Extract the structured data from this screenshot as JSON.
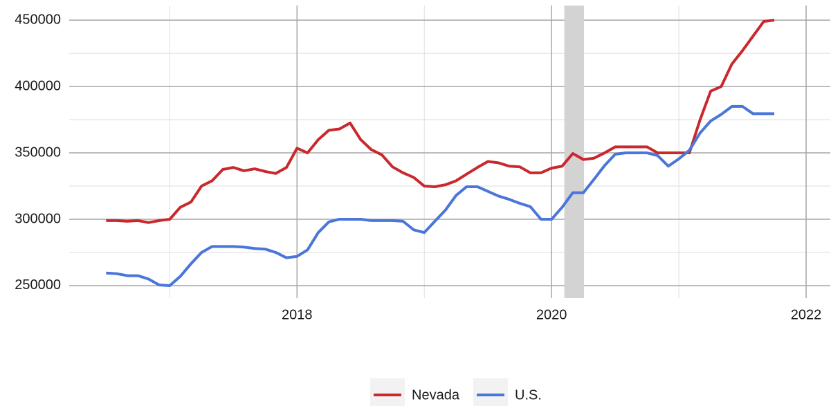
{
  "chart_data": {
    "type": "line",
    "x": [
      2016.5,
      2016.583,
      2016.667,
      2016.75,
      2016.833,
      2016.917,
      2017,
      2017.083,
      2017.167,
      2017.25,
      2017.333,
      2017.417,
      2017.5,
      2017.583,
      2017.667,
      2017.75,
      2017.833,
      2017.917,
      2018,
      2018.083,
      2018.167,
      2018.25,
      2018.333,
      2018.417,
      2018.5,
      2018.583,
      2018.667,
      2018.75,
      2018.833,
      2018.917,
      2019,
      2019.083,
      2019.167,
      2019.25,
      2019.333,
      2019.417,
      2019.5,
      2019.583,
      2019.667,
      2019.75,
      2019.833,
      2019.917,
      2020,
      2020.083,
      2020.167,
      2020.25,
      2020.333,
      2020.417,
      2020.5,
      2020.583,
      2020.667,
      2020.75,
      2020.833,
      2020.917,
      2021,
      2021.083,
      2021.167,
      2021.25,
      2021.333,
      2021.417,
      2021.5,
      2021.583,
      2021.667,
      2021.75
    ],
    "series": [
      {
        "name": "Nevada",
        "color": "#c9282d",
        "values": [
          299000,
          299000,
          298500,
          299000,
          297500,
          299000,
          300000,
          309000,
          313000,
          325000,
          329000,
          337500,
          339000,
          336500,
          338000,
          336000,
          334500,
          339000,
          353500,
          350000,
          360000,
          367000,
          368000,
          372500,
          360000,
          352500,
          348500,
          339500,
          335000,
          331500,
          325000,
          324500,
          326000,
          329000,
          334000,
          339000,
          343500,
          342500,
          340000,
          339500,
          335000,
          335000,
          338500,
          340000,
          349500,
          345000,
          346000,
          350000,
          354500,
          354500,
          354500,
          354500,
          350000,
          350000,
          350000,
          350000,
          375000,
          396500,
          400000,
          417000,
          427000,
          438000,
          449000,
          450000
        ]
      },
      {
        "name": "U.S.",
        "color": "#4a76d9",
        "values": [
          259500,
          259000,
          257500,
          257500,
          255000,
          250500,
          250000,
          257000,
          266500,
          275000,
          279500,
          279500,
          279500,
          279000,
          278000,
          277500,
          275000,
          271000,
          272000,
          277000,
          290000,
          298000,
          300000,
          300000,
          300000,
          299000,
          299000,
          299000,
          298500,
          292000,
          290000,
          298500,
          307000,
          318000,
          324500,
          324500,
          321000,
          317500,
          315000,
          312000,
          309500,
          300000,
          300000,
          309000,
          320000,
          320000,
          330000,
          340500,
          349000,
          350000,
          350000,
          350000,
          348000,
          340000,
          345500,
          352000,
          365000,
          374000,
          379000,
          385000,
          385000,
          379500,
          379500,
          379500
        ]
      }
    ],
    "xlim": [
      2016.21,
      2022.19
    ],
    "xticks": [
      2018,
      2020,
      2022
    ],
    "xminor": [
      2017,
      2019,
      2021
    ],
    "ylim": [
      240600,
      461000
    ],
    "yticks": [
      250000,
      300000,
      350000,
      400000,
      450000
    ],
    "yminor": [
      275000,
      325000,
      375000,
      425000
    ],
    "shade": [
      2020.1,
      2020.255
    ],
    "shade_color": "#d3d3d3",
    "grid": true,
    "legend": "bottom"
  }
}
